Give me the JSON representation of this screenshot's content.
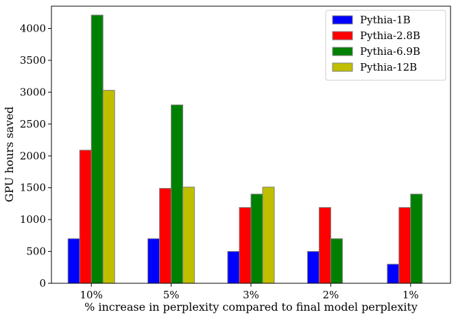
{
  "chart_data": {
    "type": "bar",
    "title": "",
    "xlabel": "% increase in perplexity compared to final model perplexity",
    "ylabel": "GPU hours saved",
    "categories": [
      "10%",
      "5%",
      "3%",
      "2%",
      "1%"
    ],
    "ylim": [
      0,
      4350
    ],
    "yticks": [
      0,
      500,
      1000,
      1500,
      2000,
      2500,
      3000,
      3500,
      4000
    ],
    "grid": false,
    "legend_position": "top-right",
    "series": [
      {
        "name": "Pythia-1B",
        "color": "#0000ff",
        "values": [
          700,
          700,
          500,
          500,
          300
        ]
      },
      {
        "name": "Pythia-2.8B",
        "color": "#ff0000",
        "values": [
          2090,
          1490,
          1190,
          1190,
          1190
        ]
      },
      {
        "name": "Pythia-6.9B",
        "color": "#008000",
        "values": [
          4210,
          2800,
          1400,
          700,
          1400
        ]
      },
      {
        "name": "Pythia-12B",
        "color": "#bfbf00",
        "values": [
          3030,
          1510,
          1510,
          null,
          null
        ]
      }
    ]
  }
}
